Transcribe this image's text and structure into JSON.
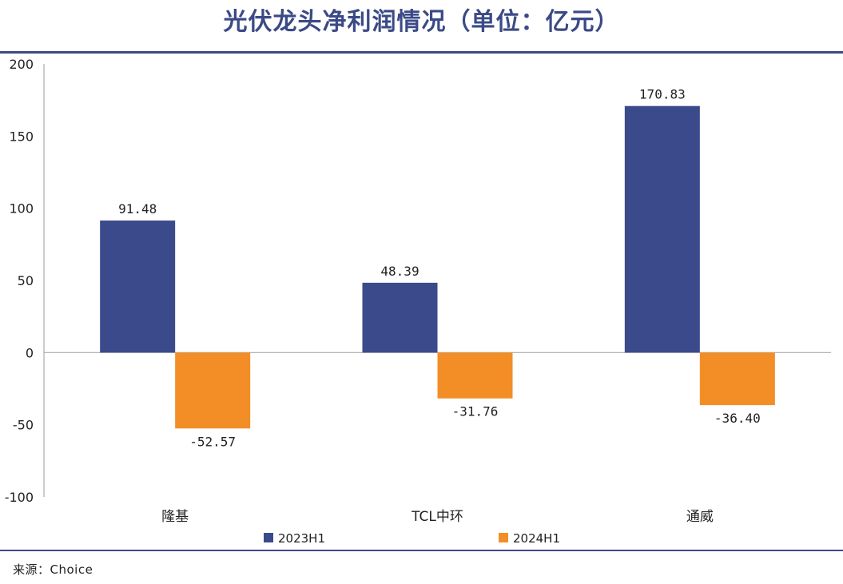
{
  "title": "光伏龙头净利润情况（单位：亿元）",
  "source": "来源：Choice",
  "colors": {
    "title": "#3b4a86",
    "series_2023": "#3b4a8b",
    "series_2024": "#f28e25"
  },
  "chart_data": {
    "type": "bar",
    "categories": [
      "隆基",
      "TCL中环",
      "通威"
    ],
    "series": [
      {
        "name": "2023H1",
        "values": [
          91.48,
          48.39,
          170.83
        ],
        "labels": [
          "91.48",
          "48.39",
          "170.83"
        ]
      },
      {
        "name": "2024H1",
        "values": [
          -52.57,
          -31.76,
          -36.4
        ],
        "labels": [
          "-52.57",
          "-31.76",
          "-36.40"
        ]
      }
    ],
    "yticks": [
      "200",
      "150",
      "100",
      "50",
      "0",
      "-50",
      "-100"
    ],
    "ylim": [
      -100,
      200
    ],
    "legend": "bottom-center",
    "grid": false
  }
}
